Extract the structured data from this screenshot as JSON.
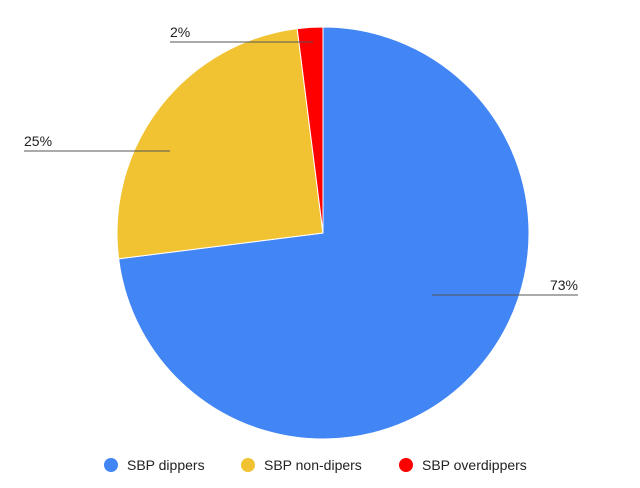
{
  "chart_data": {
    "type": "pie",
    "title": "",
    "legend_position": "bottom",
    "slices": [
      {
        "name": "SBP dippers",
        "value": 73,
        "label": "73%",
        "color": "#4285f4"
      },
      {
        "name": "SBP non-dipers",
        "value": 25,
        "label": "25%",
        "color": "#f1c232"
      },
      {
        "name": "SBP overdippers",
        "value": 2,
        "label": "2%",
        "color": "#ff0000"
      }
    ]
  }
}
